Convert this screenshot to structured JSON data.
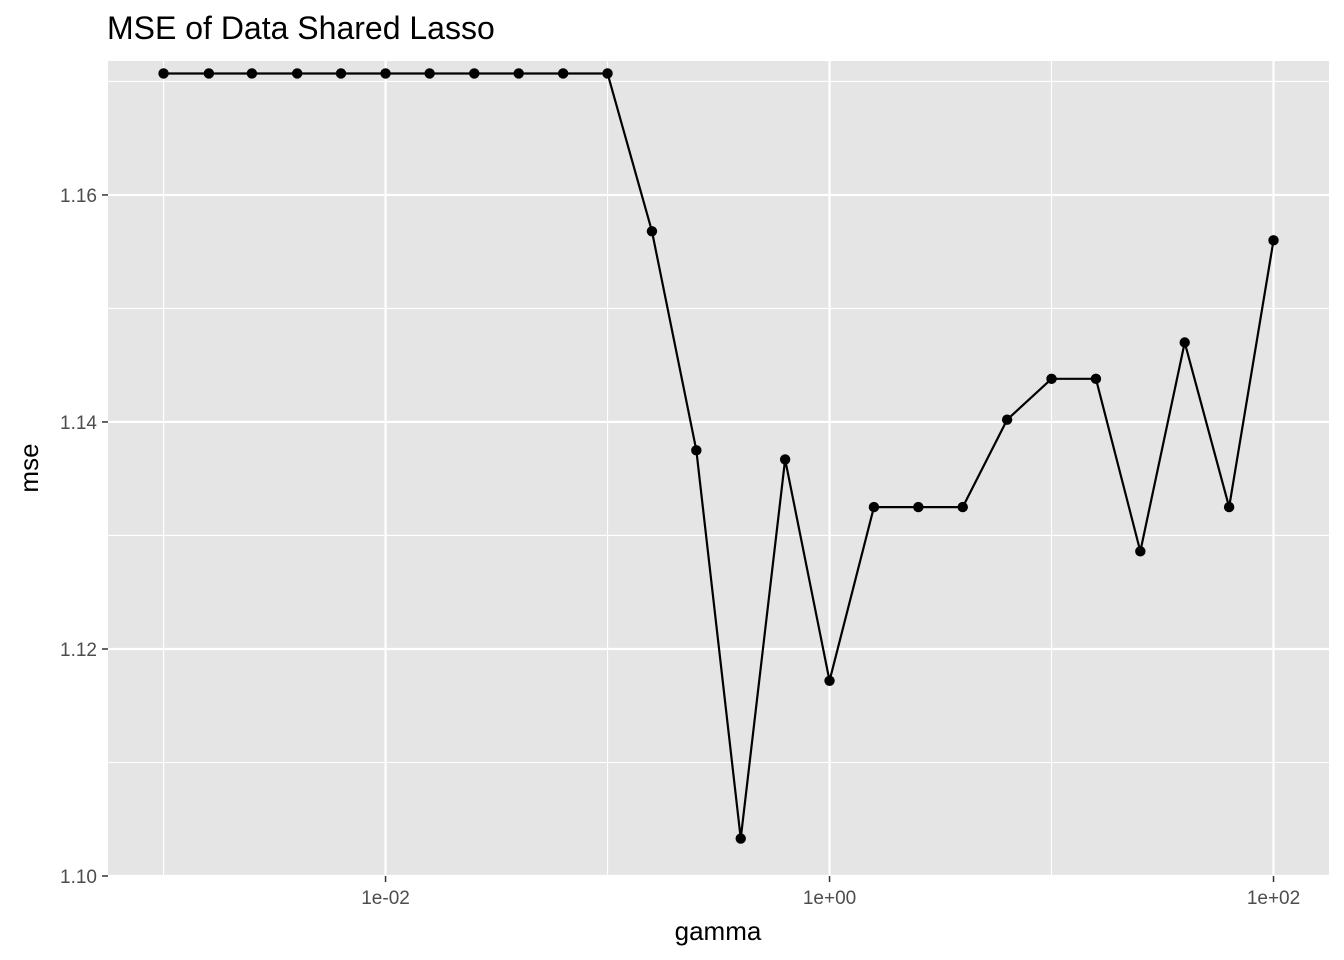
{
  "chart_data": {
    "type": "line",
    "title": "MSE of Data Shared Lasso",
    "xlabel": "gamma",
    "ylabel": "mse",
    "x_scale": "log10",
    "xlim": [
      0.000562,
      177.8
    ],
    "ylim": [
      1.1,
      1.1718
    ],
    "x_ticks": [
      0.01,
      1,
      100
    ],
    "x_tick_labels": [
      "1e-02",
      "1e+00",
      "1e+02"
    ],
    "y_ticks": [
      1.1,
      1.12,
      1.14,
      1.16
    ],
    "y_tick_labels": [
      "1.10",
      "1.12",
      "1.14",
      "1.16"
    ],
    "grid": true,
    "panel_background": "#e5e5e5",
    "line_color": "#000000",
    "series": [
      {
        "x": [
          0.001,
          0.0016,
          0.0025,
          0.004,
          0.0063,
          0.01,
          0.0158,
          0.0251,
          0.0398,
          0.0631,
          0.1,
          0.1585,
          0.2512,
          0.3981,
          0.631,
          1,
          1.585,
          2.512,
          3.981,
          6.31,
          10,
          15.85,
          25.12,
          39.81,
          63.1,
          100
        ],
        "values": [
          1.1707,
          1.1707,
          1.1707,
          1.1707,
          1.1707,
          1.1707,
          1.1707,
          1.1707,
          1.1707,
          1.1707,
          1.1707,
          1.1568,
          1.1375,
          1.1033,
          1.1367,
          1.1172,
          1.1325,
          1.1325,
          1.1325,
          1.1402,
          1.1438,
          1.1438,
          1.1286,
          1.147,
          1.1325,
          1.156
        ]
      }
    ]
  }
}
